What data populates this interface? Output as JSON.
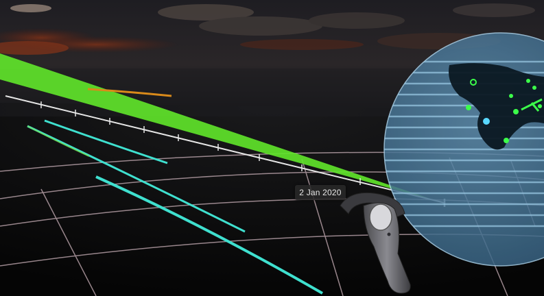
{
  "timeline": {
    "hover_date": "2 Jan 2020"
  },
  "colors": {
    "sky_glow": "#7a2a12",
    "beam": "#5fe32a",
    "cyan_trail": "#3fe0cf",
    "orange_trail": "#d98a1a",
    "timeline": "#e6e6e6",
    "grid": "#c9b0b8",
    "globe": "#7fb6d8",
    "land": "#0b1822",
    "marker": "#3cff4a"
  },
  "icons": {
    "controller": "vr-controller-icon",
    "globe": "earth-globe"
  }
}
